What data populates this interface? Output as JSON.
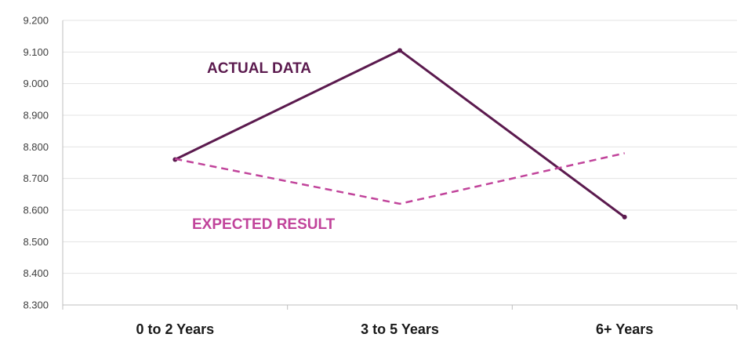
{
  "chart_data": {
    "type": "line",
    "categories": [
      "0 to 2 Years",
      "3 to 5 Years",
      "6+ Years"
    ],
    "series": [
      {
        "name": "ACTUAL DATA",
        "values": [
          8.76,
          9.105,
          8.578
        ],
        "color": "#5b1a4e",
        "dash": "solid"
      },
      {
        "name": "EXPECTED RESULT",
        "values": [
          8.762,
          8.62,
          8.78
        ],
        "color": "#c1449b",
        "dash": "dashed"
      }
    ],
    "ylim": [
      8.3,
      9.2
    ],
    "yticks": [
      "8.300",
      "8.400",
      "8.500",
      "8.600",
      "8.700",
      "8.800",
      "8.900",
      "9.000",
      "9.100",
      "9.200"
    ],
    "grid": true,
    "title": "",
    "xlabel": "",
    "ylabel": ""
  }
}
